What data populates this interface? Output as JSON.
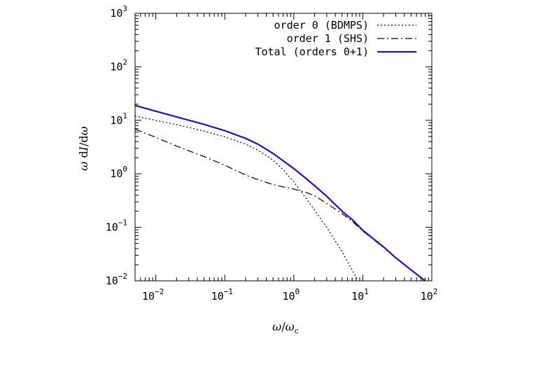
{
  "chart_data": {
    "type": "line",
    "title": "",
    "xlabel": "ω/ωc",
    "ylabel": "ω dI/dω",
    "xscale": "log",
    "yscale": "log",
    "xlim": [
      0.005,
      100
    ],
    "ylim": [
      0.01,
      1000
    ],
    "x_ticks": [
      {
        "base": "10",
        "exp": "−2"
      },
      {
        "base": "10",
        "exp": "−1"
      },
      {
        "base": "10",
        "exp": "0"
      },
      {
        "base": "10",
        "exp": "1"
      },
      {
        "base": "10",
        "exp": "2"
      }
    ],
    "y_ticks": [
      {
        "base": "10",
        "exp": "−2"
      },
      {
        "base": "10",
        "exp": "−1"
      },
      {
        "base": "10",
        "exp": "0"
      },
      {
        "base": "10",
        "exp": "1"
      },
      {
        "base": "10",
        "exp": "2"
      },
      {
        "base": "10",
        "exp": "3"
      }
    ],
    "legend_position": "top-right",
    "series": [
      {
        "name": "order 0 (BDMPS)",
        "style": "dotted",
        "color": "#000000",
        "x": [
          0.005,
          0.01,
          0.02,
          0.05,
          0.1,
          0.2,
          0.3,
          0.5,
          0.7,
          1.0,
          1.5,
          2.0,
          3.0,
          5.0,
          7.0,
          8.5
        ],
        "y": [
          12.0,
          10.0,
          8.3,
          6.3,
          4.9,
          3.6,
          2.8,
          1.8,
          1.2,
          0.7,
          0.35,
          0.21,
          0.1,
          0.035,
          0.016,
          0.01
        ]
      },
      {
        "name": "order 1 (SHS)",
        "style": "dashdot",
        "color": "#000000",
        "x": [
          0.005,
          0.01,
          0.02,
          0.05,
          0.1,
          0.2,
          0.3,
          0.5,
          0.7,
          1.0,
          1.5,
          2.0,
          3.0,
          5.0,
          7.0,
          10,
          20,
          30,
          50,
          80
        ],
        "y": [
          6.8,
          4.8,
          3.3,
          2.1,
          1.45,
          0.95,
          0.78,
          0.63,
          0.57,
          0.52,
          0.45,
          0.39,
          0.28,
          0.18,
          0.13,
          0.085,
          0.042,
          0.027,
          0.016,
          0.01
        ]
      },
      {
        "name": "Total (orders 0+1)",
        "style": "solid",
        "color": "#1414d2",
        "x": [
          0.005,
          0.01,
          0.02,
          0.05,
          0.1,
          0.2,
          0.3,
          0.5,
          0.7,
          1.0,
          1.5,
          2.0,
          3.0,
          5.0,
          7.0,
          10,
          20,
          30,
          50,
          80
        ],
        "y": [
          19.0,
          14.8,
          11.6,
          8.4,
          6.4,
          4.6,
          3.6,
          2.4,
          1.75,
          1.25,
          0.82,
          0.6,
          0.38,
          0.2,
          0.14,
          0.088,
          0.043,
          0.027,
          0.016,
          0.01
        ]
      }
    ]
  }
}
